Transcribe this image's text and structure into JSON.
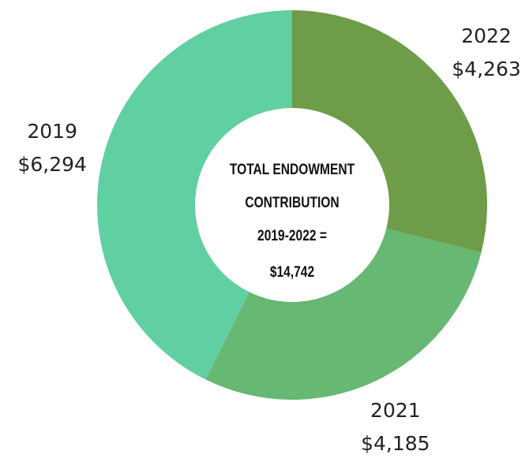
{
  "chart_data": {
    "type": "donut",
    "categories": [
      "2022",
      "2021",
      "2019"
    ],
    "values": [
      4263,
      4185,
      6294
    ],
    "value_labels": [
      "$4,263",
      "$4,185",
      "$6,294"
    ],
    "colors": [
      "#6f9c48",
      "#66b872",
      "#60cfa1"
    ],
    "annotation": [
      "TOTAL ENDOWMENT",
      "CONTRIBUTION",
      "2019-2022 =",
      "$14,742"
    ]
  }
}
